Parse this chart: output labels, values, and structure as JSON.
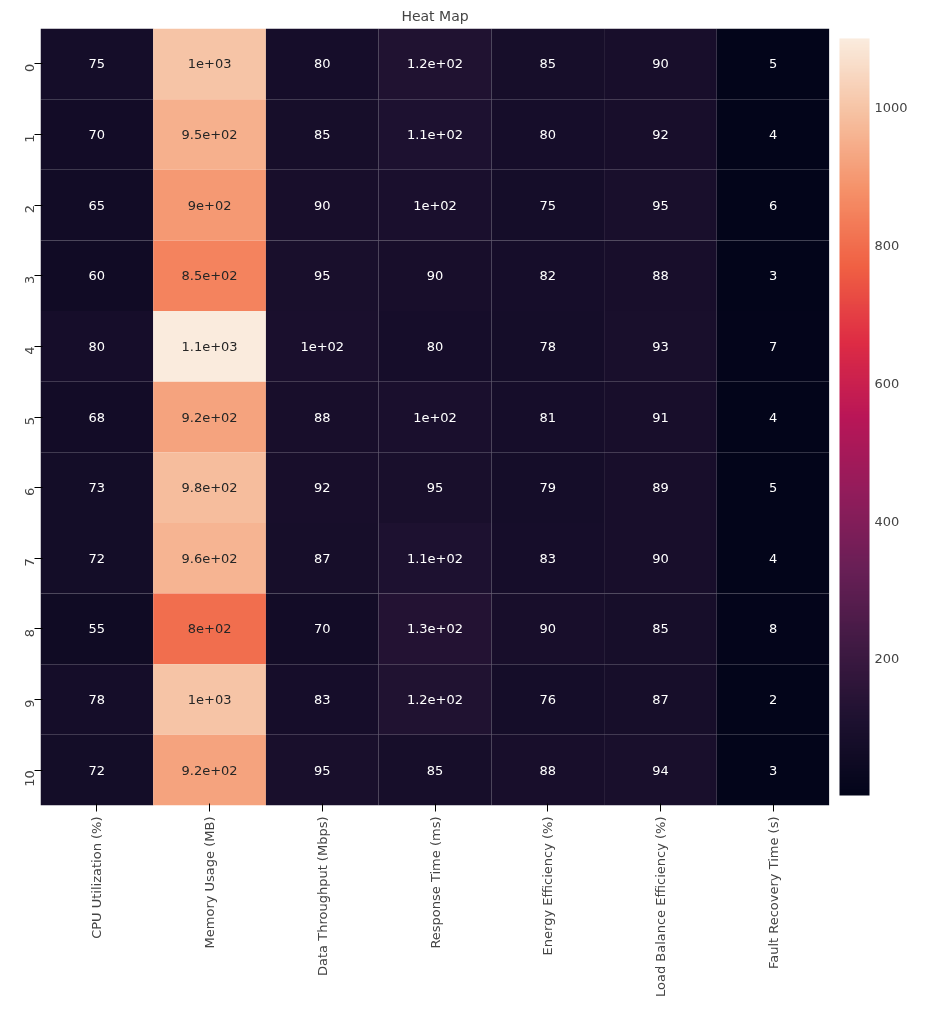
{
  "chart_data": {
    "type": "heatmap",
    "title": "Heat Map",
    "categories": [
      "CPU Utilization (%)",
      "Memory Usage (MB)",
      "Data Throughput (Mbps)",
      "Response Time (ms)",
      "Energy Efficiency (%)",
      "Load Balance Efficiency (%)",
      "Fault Recovery Time (s)"
    ],
    "y_categories": [
      "0",
      "1",
      "2",
      "3",
      "4",
      "5",
      "6",
      "7",
      "8",
      "9",
      "10"
    ],
    "cells": [
      [
        75,
        1000,
        80,
        120,
        85,
        90,
        5
      ],
      [
        70,
        950,
        85,
        110,
        80,
        92,
        4
      ],
      [
        65,
        900,
        90,
        100,
        75,
        95,
        6
      ],
      [
        60,
        850,
        95,
        90,
        82,
        88,
        3
      ],
      [
        80,
        1100,
        100,
        80,
        78,
        93,
        7
      ],
      [
        68,
        920,
        88,
        100,
        81,
        91,
        4
      ],
      [
        73,
        980,
        92,
        95,
        79,
        89,
        5
      ],
      [
        72,
        960,
        87,
        110,
        83,
        90,
        4
      ],
      [
        55,
        800,
        70,
        130,
        90,
        85,
        8
      ],
      [
        78,
        1000,
        83,
        120,
        76,
        87,
        2
      ],
      [
        72,
        920,
        95,
        85,
        88,
        94,
        3
      ]
    ],
    "cell_labels": [
      [
        "75",
        "1e+03",
        "80",
        "1.2e+02",
        "85",
        "90",
        "5"
      ],
      [
        "70",
        "9.5e+02",
        "85",
        "1.1e+02",
        "80",
        "92",
        "4"
      ],
      [
        "65",
        "9e+02",
        "90",
        "1e+02",
        "75",
        "95",
        "6"
      ],
      [
        "60",
        "8.5e+02",
        "95",
        "90",
        "82",
        "88",
        "3"
      ],
      [
        "80",
        "1.1e+03",
        "1e+02",
        "80",
        "78",
        "93",
        "7"
      ],
      [
        "68",
        "9.2e+02",
        "88",
        "1e+02",
        "81",
        "91",
        "4"
      ],
      [
        "73",
        "9.8e+02",
        "92",
        "95",
        "79",
        "89",
        "5"
      ],
      [
        "72",
        "9.6e+02",
        "87",
        "1.1e+02",
        "83",
        "90",
        "4"
      ],
      [
        "55",
        "8e+02",
        "70",
        "1.3e+02",
        "90",
        "85",
        "8"
      ],
      [
        "78",
        "1e+03",
        "83",
        "1.2e+02",
        "76",
        "87",
        "2"
      ],
      [
        "72",
        "9.2e+02",
        "95",
        "85",
        "88",
        "94",
        "3"
      ]
    ],
    "clim": [
      2,
      1100
    ],
    "cticks": [
      200,
      400,
      600,
      800,
      1000
    ]
  }
}
